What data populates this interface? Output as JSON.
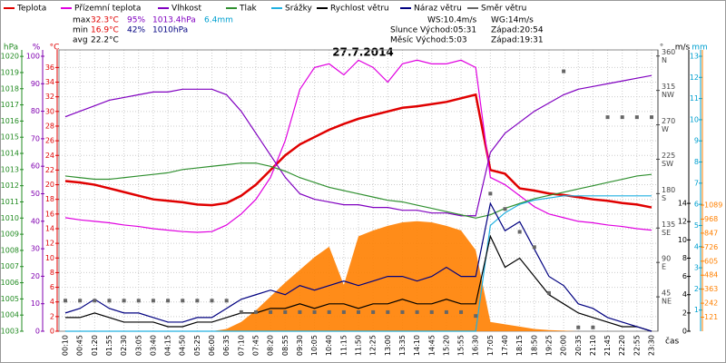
{
  "chart_data": {
    "type": "line",
    "title": "27.7.2014",
    "x_label": "čas",
    "categories": [
      "00:10",
      "00:45",
      "01:20",
      "01:55",
      "02:30",
      "03:05",
      "03:40",
      "04:15",
      "04:50",
      "05:25",
      "06:00",
      "06:35",
      "07:10",
      "07:45",
      "08:20",
      "08:55",
      "09:30",
      "10:05",
      "10:40",
      "11:15",
      "11:50",
      "12:25",
      "13:00",
      "13:35",
      "14:10",
      "14:45",
      "15:20",
      "15:55",
      "16:30",
      "17:05",
      "17:40",
      "18:15",
      "18:50",
      "19:25",
      "20:00",
      "20:35",
      "21:10",
      "21:45",
      "22:20",
      "22:55",
      "23:30"
    ],
    "grid": true,
    "axes": [
      {
        "unit": "hPa",
        "color": "#228b22",
        "lim": [
          1003,
          1020.4
        ],
        "ticks": [
          1003,
          1004,
          1005,
          1006,
          1007,
          1008,
          1009,
          1010,
          1011,
          1012,
          1013,
          1014,
          1015,
          1016,
          1017,
          1018,
          1019,
          1020
        ]
      },
      {
        "unit": "%",
        "color": "#8000b0",
        "lim": [
          0,
          102.3
        ],
        "ticks": [
          0,
          10,
          20,
          30,
          40,
          50,
          60,
          70,
          80,
          90,
          100
        ]
      },
      {
        "unit": "°C",
        "color": "#e00000",
        "lim": [
          0,
          38.4
        ],
        "ticks": [
          0,
          2,
          4,
          6,
          8,
          10,
          12,
          14,
          16,
          18,
          20,
          22,
          24,
          26,
          28,
          30,
          32,
          34,
          36
        ]
      },
      {
        "unit": "°",
        "color": "#444444",
        "lim": [
          0,
          368
        ],
        "ticks": [
          {
            "value": 45,
            "label": "NE"
          },
          {
            "value": 90,
            "label": "E"
          },
          {
            "value": 135,
            "label": "SE"
          },
          {
            "value": 180,
            "label": "S"
          },
          {
            "value": 225,
            "label": "SW"
          },
          {
            "value": 270,
            "label": "W"
          },
          {
            "value": 315,
            "label": "NW"
          },
          {
            "value": 360,
            "label": "N"
          }
        ]
      },
      {
        "unit": "m/s",
        "color": "#000000",
        "lim": [
          0,
          30.8
        ],
        "ticks": [
          0,
          2,
          4,
          6,
          8,
          10,
          12,
          14
        ]
      },
      {
        "unit": "mm",
        "color": "#00a0d0",
        "lim": [
          0,
          13.3
        ],
        "ticks": [
          1,
          2,
          3,
          4,
          5,
          6,
          7,
          8,
          9,
          10,
          11,
          12,
          13
        ]
      },
      {
        "color": "#ff8000",
        "lim": [
          0,
          2429
        ],
        "ticks": [
          121,
          242,
          363,
          484,
          605,
          726,
          847,
          968,
          1089
        ]
      }
    ],
    "radiation": {
      "color": "#ff8000",
      "axis": 6,
      "values": [
        0,
        0,
        0,
        0,
        0,
        0,
        0,
        0,
        0,
        0,
        0,
        20,
        80,
        180,
        300,
        420,
        530,
        640,
        730,
        400,
        820,
        870,
        910,
        940,
        950,
        940,
        910,
        870,
        700,
        80,
        60,
        40,
        20,
        10,
        5,
        0,
        0,
        0,
        0,
        0,
        0
      ]
    },
    "series": [
      {
        "name": "Teplota",
        "color": "#e00000",
        "axis": 2,
        "style": "line",
        "values": [
          20.5,
          20.3,
          20,
          19.5,
          19,
          18.5,
          18,
          17.8,
          17.6,
          17.3,
          17.2,
          17.5,
          18.5,
          20,
          22,
          24,
          25.5,
          26.5,
          27.5,
          28.3,
          29,
          29.5,
          30,
          30.5,
          30.7,
          31,
          31.3,
          31.8,
          32.3,
          22,
          21.5,
          19.5,
          19.2,
          18.8,
          18.6,
          18.3,
          18,
          17.8,
          17.5,
          17.3,
          16.9
        ]
      },
      {
        "name": "Přízemní teplota",
        "color": "#e000e0",
        "axis": 2,
        "style": "line",
        "values": [
          15.5,
          15.2,
          15,
          14.8,
          14.5,
          14.3,
          14,
          13.8,
          13.6,
          13.5,
          13.6,
          14.5,
          16,
          18,
          21,
          26,
          33,
          36,
          36.5,
          35,
          37,
          36,
          34,
          36.5,
          37,
          36.5,
          36.5,
          37,
          36,
          21,
          20,
          18.5,
          17,
          16,
          15.5,
          15,
          14.8,
          14.5,
          14.3,
          14,
          13.8
        ]
      },
      {
        "name": "Vlhkost",
        "color": "#8000c0",
        "axis": 1,
        "style": "line",
        "values": [
          78,
          80,
          82,
          84,
          85,
          86,
          87,
          87,
          88,
          88,
          88,
          86,
          80,
          72,
          64,
          56,
          50,
          48,
          47,
          46,
          46,
          45,
          45,
          44,
          44,
          43,
          43,
          42,
          42,
          65,
          72,
          76,
          80,
          83,
          86,
          88,
          89,
          90,
          91,
          92,
          93
        ]
      },
      {
        "name": "Tlak",
        "color": "#309030",
        "axis": 0,
        "style": "line",
        "values": [
          1012.6,
          1012.5,
          1012.4,
          1012.4,
          1012.5,
          1012.6,
          1012.7,
          1012.8,
          1013,
          1013.1,
          1013.2,
          1013.3,
          1013.4,
          1013.4,
          1013.2,
          1012.9,
          1012.5,
          1012.2,
          1011.9,
          1011.7,
          1011.5,
          1011.3,
          1011.1,
          1011,
          1010.8,
          1010.6,
          1010.4,
          1010.2,
          1010,
          1010.2,
          1010.6,
          1010.9,
          1011.2,
          1011.4,
          1011.6,
          1011.8,
          1012,
          1012.2,
          1012.4,
          1012.6,
          1012.7
        ]
      },
      {
        "name": "Srážky",
        "color": "#20b0e0",
        "axis": 5,
        "style": "line",
        "values": [
          0,
          0,
          0,
          0,
          0,
          0,
          0,
          0,
          0,
          0,
          0,
          0,
          0,
          0,
          0,
          0,
          0,
          0,
          0,
          0,
          0,
          0,
          0,
          0,
          0,
          0,
          0,
          0,
          0,
          5,
          5.6,
          6,
          6.2,
          6.3,
          6.4,
          6.4,
          6.4,
          6.4,
          6.4,
          6.4,
          6.4
        ]
      },
      {
        "name": "Rychlost větru",
        "color": "#000000",
        "axis": 4,
        "style": "line",
        "values": [
          1.5,
          1.5,
          2,
          1.5,
          1,
          1,
          1,
          0.5,
          0.5,
          1,
          1,
          1.5,
          2,
          2,
          2.5,
          2.5,
          3,
          2.5,
          3,
          3,
          2.5,
          3,
          3,
          3.5,
          3,
          3,
          3.5,
          3,
          3,
          10.4,
          7,
          8,
          6,
          4,
          3,
          2,
          1.5,
          1,
          0.5,
          0.5,
          0
        ]
      },
      {
        "name": "Náraz větru",
        "color": "#000080",
        "axis": 4,
        "style": "line",
        "values": [
          2,
          2.5,
          3.5,
          2.5,
          2,
          2,
          1.5,
          1,
          1,
          1.5,
          1.5,
          2.5,
          3.5,
          4,
          4.5,
          4,
          5,
          4.5,
          5,
          5.5,
          5,
          5.5,
          6,
          6,
          5.5,
          6,
          7,
          6,
          6,
          14,
          11,
          12,
          9,
          6,
          5,
          3,
          2.5,
          1.5,
          1,
          0.5,
          0
        ]
      },
      {
        "name": "Směr větru",
        "color": "#666666",
        "axis": 3,
        "style": "dots",
        "values": [
          40,
          40,
          40,
          40,
          40,
          40,
          40,
          40,
          40,
          40,
          40,
          40,
          25,
          25,
          25,
          25,
          25,
          25,
          25,
          25,
          25,
          25,
          25,
          25,
          25,
          25,
          25,
          25,
          20,
          180,
          160,
          130,
          110,
          50,
          340,
          5,
          5,
          280,
          280,
          280,
          280
        ]
      }
    ],
    "stats": [
      {
        "label": "max",
        "items": [
          {
            "text": "32.3°C",
            "color": "#e00000"
          },
          {
            "text": "95%",
            "color": "#8000c0"
          },
          {
            "text": "1013.4hPa",
            "color": "#8000c0"
          },
          {
            "text": "6.4mm",
            "color": "#00a0d0"
          }
        ]
      },
      {
        "label": "min",
        "items": [
          {
            "text": "16.9°C",
            "color": "#e00000"
          },
          {
            "text": "42%",
            "color": "#000080"
          },
          {
            "text": "1010hPa",
            "color": "#000080"
          }
        ]
      },
      {
        "label": "avg",
        "items": [
          {
            "text": "22.2°C",
            "color": "#000000"
          }
        ]
      }
    ],
    "info": [
      [
        "WS:10.4m/s",
        "WG:14m/s"
      ],
      [
        "Slunce Východ:05:31",
        "Západ:20:54"
      ],
      [
        "Měsíc Východ:5:03",
        "Západ:19:31"
      ]
    ]
  }
}
